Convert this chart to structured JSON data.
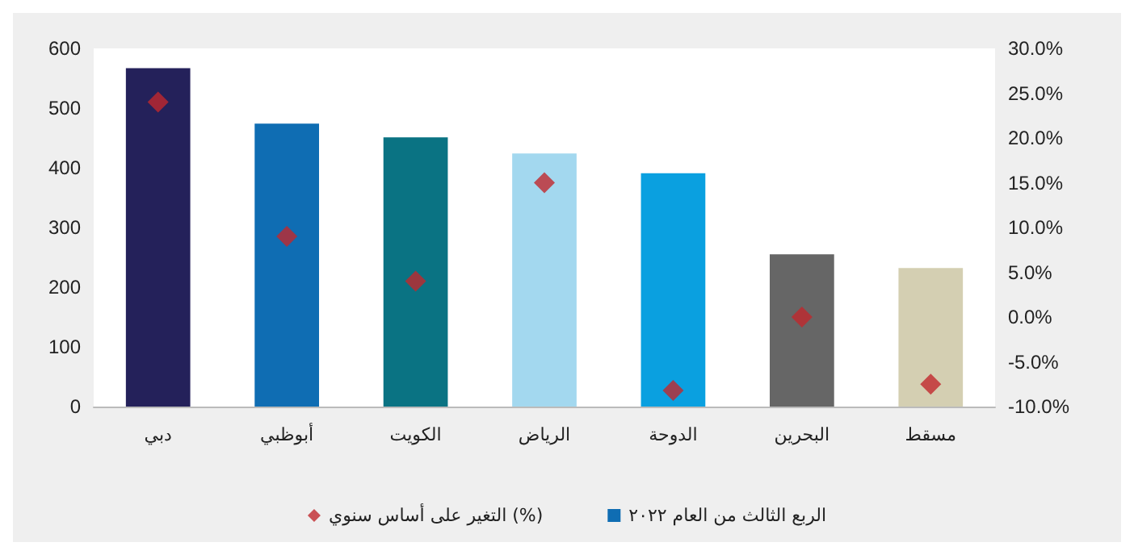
{
  "chart_data": {
    "type": "bar",
    "categories": [
      "دبي",
      "أبوظبي",
      "الكويت",
      "الرياض",
      "الدوحة",
      "البحرين",
      "مسقط"
    ],
    "series": [
      {
        "name": "الربع الثالث من العام ٢٠٢٢",
        "color": "#0f6db3",
        "colors": [
          "#24215a",
          "#0f6db3",
          "#0a7383",
          "#a3d8ef",
          "#0aa0e0",
          "#666666",
          "#d4cfb2"
        ],
        "values": [
          567,
          474,
          451,
          424,
          391,
          255,
          232
        ]
      },
      {
        "name": "التغير على أساس سنوي (%)",
        "type": "scatter",
        "axis": "y2",
        "marker": "diamond",
        "color": "#c0282d",
        "values": [
          24,
          9,
          4,
          15,
          -8.2,
          0,
          -7.5
        ]
      }
    ],
    "ylim": [
      0,
      600
    ],
    "yticks": [
      0,
      100,
      200,
      300,
      400,
      500,
      600
    ],
    "y2lim": [
      -10,
      30
    ],
    "y2ticks": [
      {
        "value": -10,
        "label": "-10.0%"
      },
      {
        "value": -5,
        "label": "-5.0%"
      },
      {
        "value": 0,
        "label": "0.0%"
      },
      {
        "value": 5,
        "label": "5.0%"
      },
      {
        "value": 10,
        "label": "10.0%"
      },
      {
        "value": 15,
        "label": "15.0%"
      },
      {
        "value": 20,
        "label": "20.0%"
      },
      {
        "value": 25,
        "label": "25.0%"
      },
      {
        "value": 30,
        "label": "30.0%"
      }
    ],
    "grid": false,
    "legend": "bottom"
  }
}
